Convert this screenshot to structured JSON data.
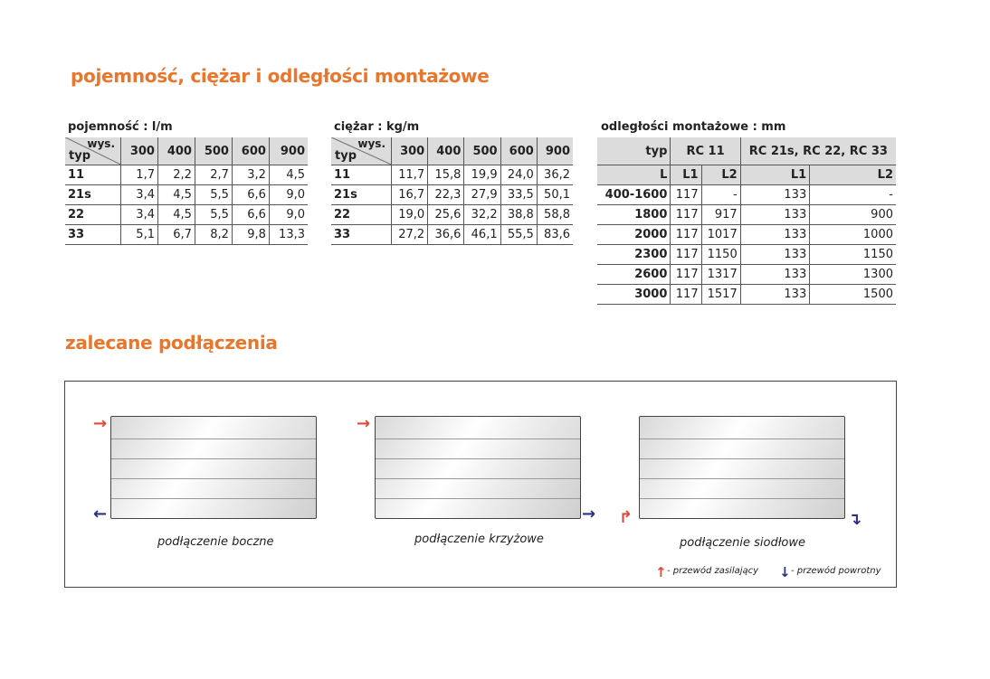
{
  "title1": "pojemność, ciężar i odległości montażowe",
  "title2": "zalecane podłączenia",
  "capacity": {
    "caption": "pojemność : l/m",
    "corner_top": "wys.",
    "corner_bottom": "typ",
    "heights": [
      "300",
      "400",
      "500",
      "600",
      "900"
    ],
    "rows": [
      [
        "11",
        "1,7",
        "2,2",
        "2,7",
        "3,2",
        "4,5"
      ],
      [
        "21s",
        "3,4",
        "4,5",
        "5,5",
        "6,6",
        "9,0"
      ],
      [
        "22",
        "3,4",
        "4,5",
        "5,5",
        "6,6",
        "9,0"
      ],
      [
        "33",
        "5,1",
        "6,7",
        "8,2",
        "9,8",
        "13,3"
      ]
    ]
  },
  "weight": {
    "caption": "ciężar : kg/m",
    "corner_top": "wys.",
    "corner_bottom": "typ",
    "heights": [
      "300",
      "400",
      "500",
      "600",
      "900"
    ],
    "rows": [
      [
        "11",
        "11,7",
        "15,8",
        "19,9",
        "24,0",
        "36,2"
      ],
      [
        "21s",
        "16,7",
        "22,3",
        "27,9",
        "33,5",
        "50,1"
      ],
      [
        "22",
        "19,0",
        "25,6",
        "32,2",
        "38,8",
        "58,8"
      ],
      [
        "33",
        "27,2",
        "36,6",
        "46,1",
        "55,5",
        "83,6"
      ]
    ]
  },
  "distances": {
    "caption": "odległości montażowe : mm",
    "h_typ": "typ",
    "h_rc11": "RC 11",
    "h_rc": "RC 21s, RC 22, RC 33",
    "sub": [
      "L",
      "L1",
      "L2",
      "L1",
      "L2"
    ],
    "rows": [
      [
        "400-1600",
        "117",
        "-",
        "133",
        "-"
      ],
      [
        "1800",
        "117",
        "917",
        "133",
        "900"
      ],
      [
        "2000",
        "117",
        "1017",
        "133",
        "1000"
      ],
      [
        "2300",
        "117",
        "1150",
        "133",
        "1150"
      ],
      [
        "2600",
        "117",
        "1317",
        "133",
        "1300"
      ],
      [
        "3000",
        "117",
        "1517",
        "133",
        "1500"
      ]
    ]
  },
  "connections": [
    "podłączenie boczne",
    "podłączenie krzyżowe",
    "podłączenie siodłowe"
  ],
  "legend": {
    "supply": "- przewód zasilający",
    "return": "- przewód powrotny"
  },
  "colors": {
    "accent": "#e8762d",
    "supply": "#e04a3a",
    "return": "#2c2f86"
  }
}
